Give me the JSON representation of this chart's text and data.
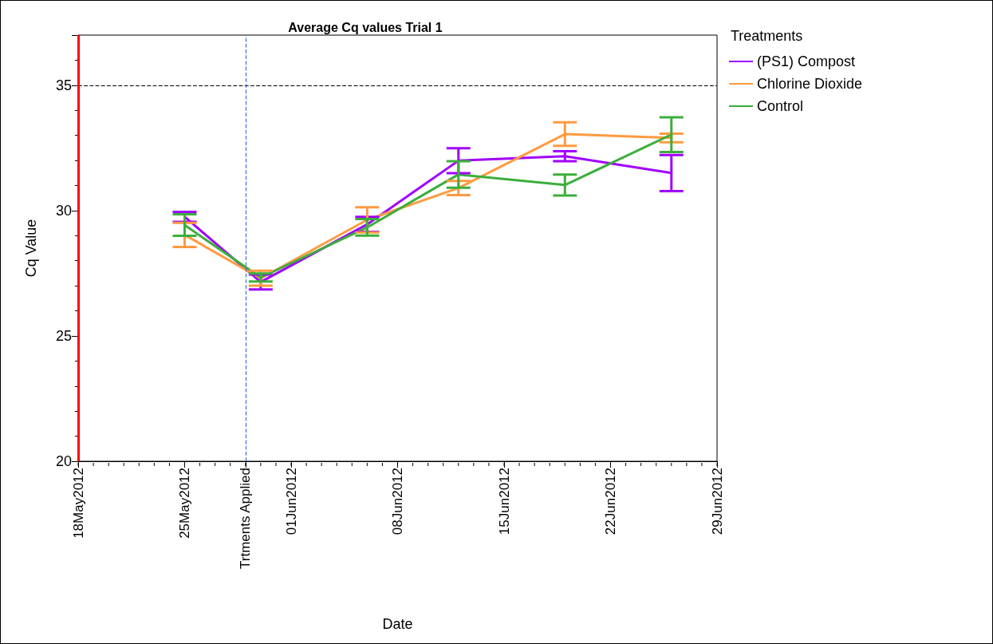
{
  "chart_data": {
    "type": "line",
    "title": "Average Cq values Trial 1",
    "xlabel": "Date",
    "ylabel": "Cq Value",
    "legend_title": "Treatments",
    "legend": "top right",
    "marker": "none",
    "line_style": "solid",
    "grid": false,
    "x": [
      "2012-05-25",
      "2012-05-30",
      "2012-06-06",
      "2012-06-12",
      "2012-06-19",
      "2012-06-26"
    ],
    "series": [
      {
        "name": "(PS1) Compost",
        "color": "#a100ff",
        "values": [
          29.75,
          27.15,
          29.45,
          31.99,
          32.17,
          31.5
        ],
        "errors": [
          0.2,
          0.3,
          0.3,
          0.5,
          0.2,
          0.72
        ]
      },
      {
        "name": "Chlorine Dioxide",
        "color": "#ff9a40",
        "values": [
          29.03,
          27.3,
          29.63,
          30.9,
          33.05,
          32.9
        ],
        "errors": [
          0.48,
          0.3,
          0.5,
          0.28,
          0.47,
          0.17
        ]
      },
      {
        "name": "Control",
        "color": "#3cae3c",
        "values": [
          29.42,
          27.33,
          29.33,
          31.44,
          31.02,
          33.03
        ],
        "errors": [
          0.43,
          0.16,
          0.33,
          0.53,
          0.42,
          0.69
        ]
      }
    ],
    "xlim": [
      "2012-05-18",
      "2012-06-29"
    ],
    "xticks": [
      {
        "value": "2012-05-18",
        "label": "18May2012"
      },
      {
        "value": "2012-05-25",
        "label": "25May2012"
      },
      {
        "value": "2012-05-29",
        "label": "Trtments Applied"
      },
      {
        "value": "2012-06-01",
        "label": "01Jun2012"
      },
      {
        "value": "2012-06-08",
        "label": "08Jun2012"
      },
      {
        "value": "2012-06-15",
        "label": "15Jun2012"
      },
      {
        "value": "2012-06-22",
        "label": "22Jun2012"
      },
      {
        "value": "2012-06-29",
        "label": "29Jun2012"
      }
    ],
    "ylim": [
      20,
      37
    ],
    "yticks": [
      20,
      25,
      30,
      35
    ],
    "ref_lines": [
      {
        "axis": "y",
        "value": 35,
        "color": "#000000",
        "line_style": "dashed"
      },
      {
        "axis": "x",
        "value": "2012-05-29",
        "color": "#3c6ee6",
        "line_style": "dashed"
      },
      {
        "axis": "x",
        "value": "2012-05-18",
        "color": "#ff0000",
        "line_style": "solid"
      }
    ]
  }
}
